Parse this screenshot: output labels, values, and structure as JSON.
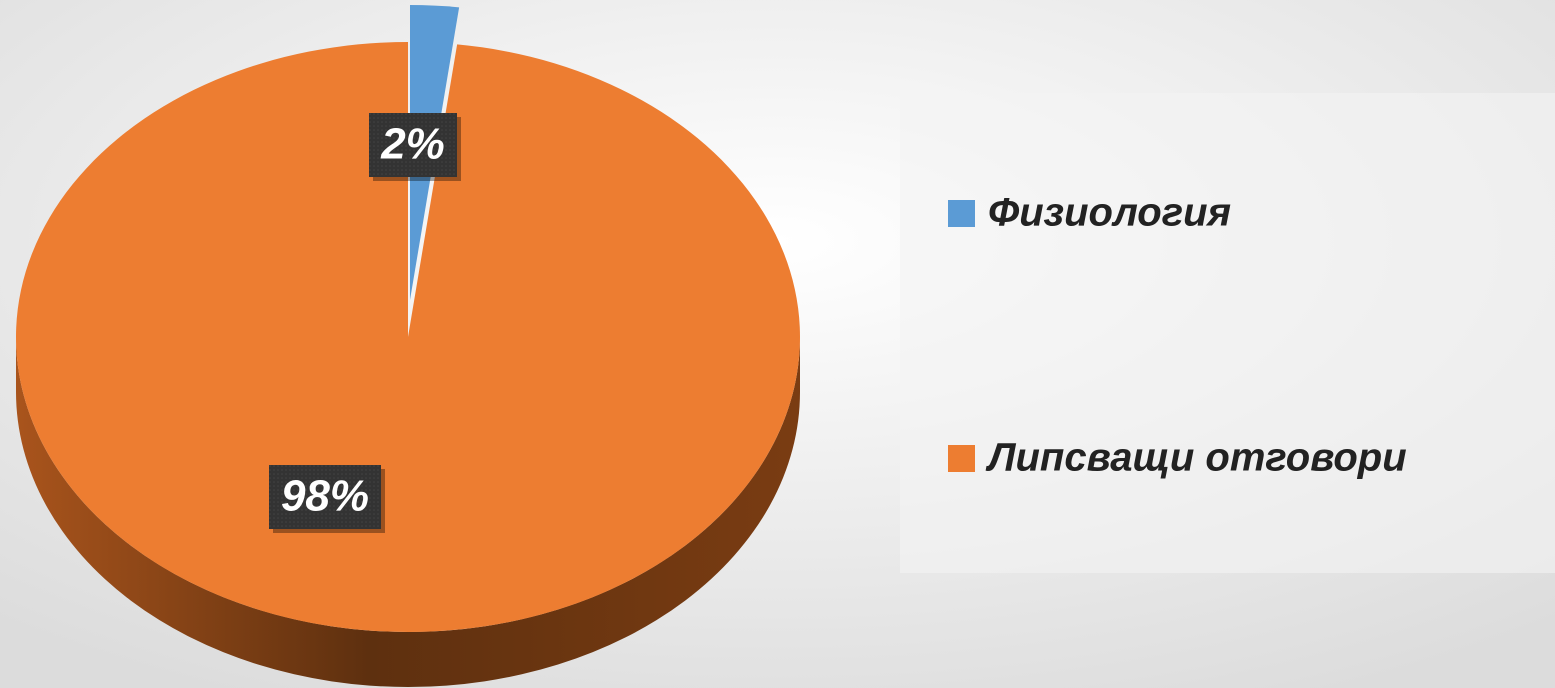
{
  "chart_data": {
    "type": "pie",
    "categories": [
      "Физиология",
      "Липсващи отговори"
    ],
    "values": [
      2,
      98
    ],
    "value_labels": [
      "2%",
      "98%"
    ],
    "colors": [
      "#5b9bd5",
      "#ed7d31"
    ],
    "legend": "right"
  }
}
